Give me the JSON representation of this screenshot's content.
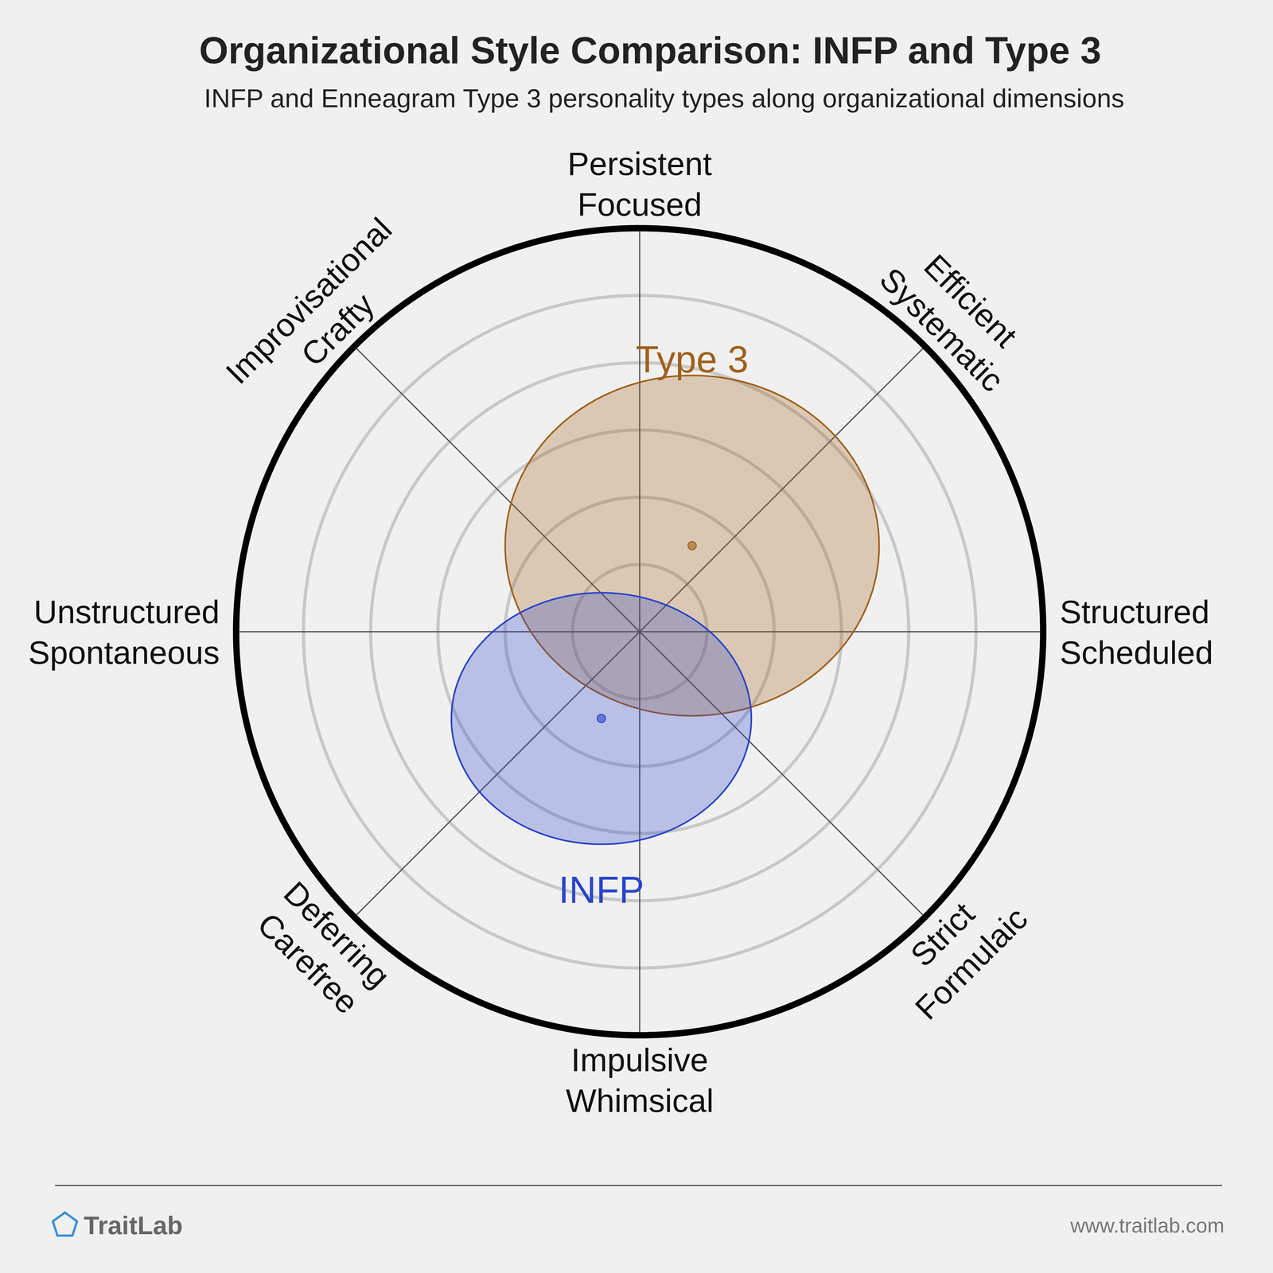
{
  "chart_data": {
    "type": "ellipse_radar",
    "title": "Organizational Style Comparison: INFP and Type 3",
    "subtitle": "INFP and Enneagram Type 3 personality types along organizational dimensions",
    "axes": [
      [
        "Persistent",
        "Focused"
      ],
      [
        "Efficient",
        "Systematic"
      ],
      [
        "Structured",
        "Scheduled"
      ],
      [
        "Strict",
        "Formulaic"
      ],
      [
        "Impulsive",
        "Whimsical"
      ],
      [
        "Deferring",
        "Carefree"
      ],
      [
        "Unstructured",
        "Spontaneous"
      ],
      [
        "Improvisational",
        "Crafty"
      ]
    ],
    "rlim": [
      0,
      6
    ],
    "rticks": [
      1,
      2,
      3,
      4,
      5
    ],
    "grid": true,
    "tick_labels": false,
    "series": [
      {
        "name": "Type 3",
        "color": "#a0601a",
        "x": 0.78,
        "y": 1.28,
        "rx": 2.78,
        "ry": 2.53
      },
      {
        "name": "INFP",
        "color": "#2a45c8",
        "x": -0.57,
        "y": -1.29,
        "rx": 2.23,
        "ry": 1.87
      }
    ],
    "brand": "TraitLab",
    "url": "www.traitlab.com"
  }
}
